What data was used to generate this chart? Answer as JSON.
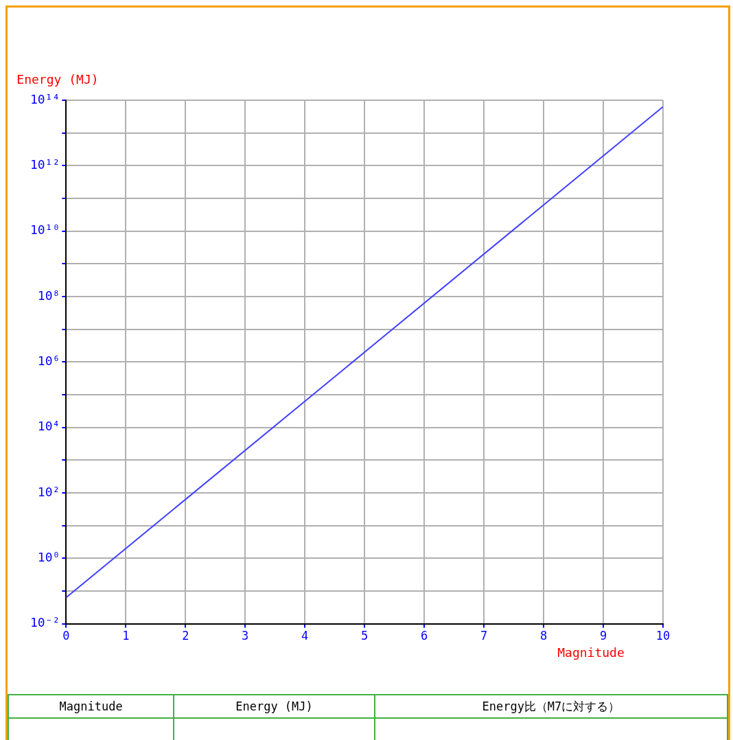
{
  "chart_data": {
    "type": "line",
    "xlabel": "Magnitude",
    "ylabel": "Energy (MJ)",
    "x": [
      0,
      10
    ],
    "series": [
      {
        "color": "#4040ff",
        "values": [
          0.063,
          63000000000000.0
        ]
      }
    ],
    "log": "y",
    "xlim": [
      0,
      10
    ],
    "xticks": [
      0,
      1,
      2,
      3,
      4,
      5,
      6,
      7,
      8,
      9,
      10
    ],
    "ylim": [
      0.01,
      100000000000000.0
    ],
    "yticks": [
      {
        "value": 0.01,
        "label": "10⁻²"
      },
      {
        "value": 0.1,
        "label": null
      },
      {
        "value": 1,
        "label": "10⁰"
      },
      {
        "value": 10,
        "label": null
      },
      {
        "value": 100,
        "label": "10²"
      },
      {
        "value": 1000,
        "label": null
      },
      {
        "value": 10000,
        "label": "10⁴"
      },
      {
        "value": 100000,
        "label": null
      },
      {
        "value": 1000000,
        "label": "10⁶"
      },
      {
        "value": 10000000,
        "label": null
      },
      {
        "value": 100000000,
        "label": "10⁸"
      },
      {
        "value": 1000000000,
        "label": null
      },
      {
        "value": 10000000000,
        "label": "10¹⁰"
      },
      {
        "value": 100000000000,
        "label": null
      },
      {
        "value": 1000000000000,
        "label": "10¹²"
      },
      {
        "value": 10000000000000,
        "label": null
      },
      {
        "value": 100000000000000,
        "label": "10¹⁴"
      }
    ],
    "grid": true,
    "legend": false,
    "marker": "none",
    "line_style": "solid",
    "annotations": [
      "Magnitude",
      "Energy (MJ)",
      "Energy比（M7に対する）"
    ]
  }
}
